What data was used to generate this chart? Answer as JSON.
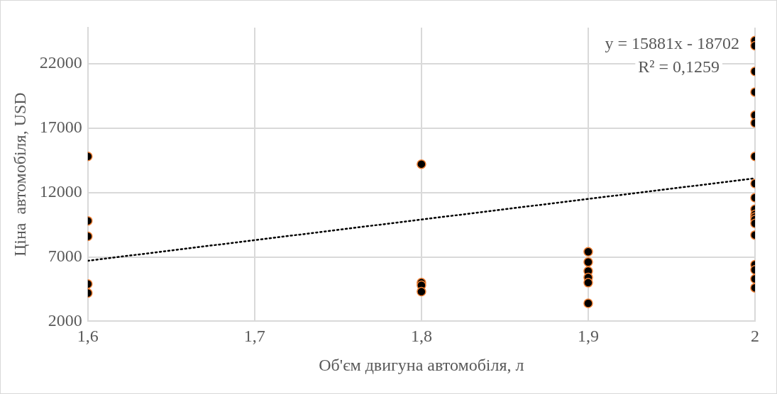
{
  "chart_data": {
    "type": "scatter",
    "xlabel": "Об'єм двигуна автомобіля, л",
    "ylabel": "Ціна  автомобіля, USD",
    "series": [
      {
        "color": "#000000",
        "x": [
          1.6,
          1.6,
          1.6,
          1.6,
          1.6,
          1.8,
          1.8,
          1.8,
          1.8,
          1.9,
          1.9,
          1.9,
          1.9,
          1.9,
          1.9,
          2,
          2,
          2,
          2,
          2,
          2,
          2,
          2,
          2,
          2,
          2,
          2,
          2,
          2,
          2,
          2,
          2,
          2,
          2
        ],
        "values": [
          14800,
          9800,
          8600,
          4900,
          4200,
          14200,
          5000,
          4800,
          4300,
          7400,
          6600,
          5900,
          5400,
          5000,
          3400,
          23800,
          23400,
          21400,
          19800,
          18000,
          17400,
          14800,
          12700,
          11600,
          10700,
          10300,
          10100,
          9900,
          9600,
          8700,
          6400,
          6000,
          5300,
          4600
        ]
      },
      {
        "type": "line",
        "color": "#000000",
        "line_style": "dotted",
        "marker": "none",
        "x": [
          1.6,
          2
        ],
        "values": [
          6700,
          13100
        ]
      }
    ],
    "xlim": [
      1.6,
      2
    ],
    "xticks": [
      {
        "value": 1.6,
        "label": "1,6"
      },
      {
        "value": 1.7,
        "label": "1,7"
      },
      {
        "value": 1.8,
        "label": "1,8"
      },
      {
        "value": 1.9,
        "label": "1,9"
      },
      2
    ],
    "ylim": [
      2000,
      24800
    ],
    "yticks": [
      2000,
      7000,
      12000,
      17000,
      22000
    ],
    "grid": true,
    "legend": false,
    "marker": "circle",
    "annotations": [
      "y = 15881x - 18702",
      "R² = 0,1259"
    ]
  }
}
